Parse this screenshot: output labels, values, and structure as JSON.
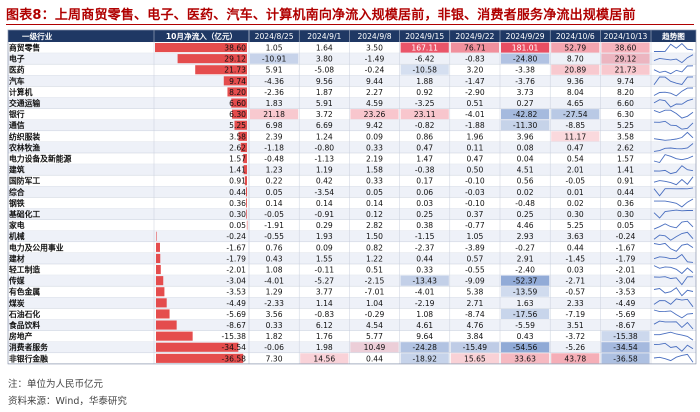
{
  "title": "图表8：上周商贸零售、电子、医药、汽车、计算机南向净流入规模居前，非银、消费者服务净流出规模居前",
  "header": {
    "industry": "一级行业",
    "latest": "10月净流入（亿元）",
    "trend": "趋势图"
  },
  "footnote": {
    "unit": "注：单位为人民币亿元",
    "source": "资料来源：Wind，华泰研究"
  },
  "colors": {
    "title": "#b00000",
    "header_bg": "#1f3864",
    "bar_red": "#e23a3a",
    "pos_cell": "#e8445a",
    "neg_cell": "#2f5fb3",
    "sparkline": "#4a6fc0",
    "band": "#eef1f8"
  },
  "chart_data": {
    "type": "table",
    "columns": [
      "2024/8/25",
      "2024/9/1",
      "2024/9/8",
      "2024/9/15",
      "2024/9/22",
      "2024/9/29",
      "2024/10/6",
      "2024/10/13"
    ],
    "rows": [
      {
        "industry": "商贸零售",
        "latest": "38.60",
        "values": [
          "1.05",
          "1.64",
          "3.50",
          "167.11",
          "76.71",
          "181.01",
          "52.79",
          "38.60"
        ]
      },
      {
        "industry": "电子",
        "latest": "29.12",
        "values": [
          "-10.91",
          "3.80",
          "-1.49",
          "-6.42",
          "-0.83",
          "-24.80",
          "8.70",
          "29.12"
        ]
      },
      {
        "industry": "医药",
        "latest": "21.73",
        "values": [
          "5.91",
          "-5.08",
          "-0.24",
          "-10.58",
          "3.20",
          "-3.38",
          "20.89",
          "21.73"
        ]
      },
      {
        "industry": "汽车",
        "latest": "9.74",
        "values": [
          "-4.36",
          "9.56",
          "9.44",
          "1.88",
          "-1.47",
          "-3.76",
          "9.36",
          "9.74"
        ]
      },
      {
        "industry": "计算机",
        "latest": "8.20",
        "values": [
          "-2.36",
          "1.87",
          "2.27",
          "0.92",
          "-2.90",
          "3.73",
          "8.04",
          "8.20"
        ]
      },
      {
        "industry": "交通运输",
        "latest": "6.60",
        "values": [
          "1.83",
          "5.91",
          "4.59",
          "-3.25",
          "0.51",
          "0.27",
          "4.65",
          "6.60"
        ]
      },
      {
        "industry": "银行",
        "latest": "6.30",
        "values": [
          "21.18",
          "3.72",
          "23.26",
          "23.11",
          "-4.01",
          "-42.82",
          "-27.54",
          "6.30"
        ]
      },
      {
        "industry": "通信",
        "latest": "5.25",
        "values": [
          "6.98",
          "6.69",
          "9.42",
          "-0.82",
          "-1.88",
          "-11.30",
          "-8.85",
          "5.25"
        ]
      },
      {
        "industry": "纺织服装",
        "latest": "3.58",
        "values": [
          "2.39",
          "1.24",
          "0.09",
          "0.86",
          "1.96",
          "3.96",
          "11.17",
          "3.58"
        ]
      },
      {
        "industry": "农林牧渔",
        "latest": "2.62",
        "values": [
          "-1.18",
          "-0.80",
          "0.33",
          "0.47",
          "0.11",
          "0.08",
          "0.47",
          "2.62"
        ]
      },
      {
        "industry": "电力设备及新能源",
        "latest": "1.57",
        "values": [
          "-0.48",
          "-1.13",
          "2.19",
          "1.47",
          "0.47",
          "0.04",
          "0.54",
          "1.57"
        ]
      },
      {
        "industry": "建筑",
        "latest": "1.41",
        "values": [
          "1.23",
          "1.19",
          "1.58",
          "-0.38",
          "0.50",
          "4.51",
          "2.01",
          "1.41"
        ]
      },
      {
        "industry": "国防军工",
        "latest": "0.91",
        "values": [
          "0.22",
          "0.42",
          "0.33",
          "0.17",
          "-0.10",
          "0.56",
          "-0.05",
          "0.91"
        ]
      },
      {
        "industry": "综合",
        "latest": "0.44",
        "values": [
          "0.05",
          "-3.54",
          "0.05",
          "0.06",
          "-0.03",
          "0.02",
          "0.01",
          "0.44"
        ]
      },
      {
        "industry": "钢铁",
        "latest": "0.36",
        "values": [
          "0.14",
          "0.14",
          "0.14",
          "0.03",
          "-0.10",
          "-0.48",
          "0.02",
          "0.36"
        ]
      },
      {
        "industry": "基础化工",
        "latest": "0.30",
        "values": [
          "-0.05",
          "-0.91",
          "0.12",
          "0.25",
          "0.37",
          "0.25",
          "0.30",
          "0.30"
        ]
      },
      {
        "industry": "家电",
        "latest": "0.05",
        "values": [
          "-1.91",
          "0.29",
          "2.82",
          "0.38",
          "-0.77",
          "4.46",
          "5.25",
          "0.05"
        ]
      },
      {
        "industry": "机械",
        "latest": "-0.24",
        "values": [
          "-0.55",
          "1.93",
          "1.50",
          "-1.15",
          "1.05",
          "2.93",
          "3.63",
          "-0.24"
        ]
      },
      {
        "industry": "电力及公用事业",
        "latest": "-1.67",
        "values": [
          "0.76",
          "0.09",
          "0.82",
          "-2.37",
          "-3.89",
          "-0.27",
          "0.44",
          "-1.67"
        ]
      },
      {
        "industry": "建材",
        "latest": "-1.79",
        "values": [
          "0.43",
          "1.55",
          "1.22",
          "0.44",
          "0.57",
          "2.91",
          "-1.45",
          "-1.79"
        ]
      },
      {
        "industry": "轻工制造",
        "latest": "-2.01",
        "values": [
          "1.08",
          "-0.11",
          "0.51",
          "0.33",
          "-0.55",
          "-2.40",
          "0.03",
          "-2.01"
        ]
      },
      {
        "industry": "传媒",
        "latest": "-3.04",
        "values": [
          "-4.01",
          "-5.27",
          "-2.15",
          "-13.43",
          "-9.09",
          "-52.37",
          "-2.71",
          "-3.04"
        ]
      },
      {
        "industry": "有色金属",
        "latest": "-3.53",
        "values": [
          "1.29",
          "3.77",
          "-7.01",
          "-4.01",
          "5.38",
          "-13.59",
          "-0.57",
          "-3.53"
        ]
      },
      {
        "industry": "煤炭",
        "latest": "-4.49",
        "values": [
          "-2.33",
          "1.14",
          "1.04",
          "-2.19",
          "2.71",
          "1.63",
          "2.33",
          "-4.49"
        ]
      },
      {
        "industry": "石油石化",
        "latest": "-5.69",
        "values": [
          "3.56",
          "-0.83",
          "-0.29",
          "1.08",
          "-8.74",
          "-17.56",
          "-7.19",
          "-5.69"
        ]
      },
      {
        "industry": "食品饮料",
        "latest": "-8.67",
        "values": [
          "0.33",
          "6.12",
          "4.54",
          "4.61",
          "4.76",
          "-5.59",
          "3.51",
          "-8.67"
        ]
      },
      {
        "industry": "房地产",
        "latest": "-15.38",
        "values": [
          "1.82",
          "1.76",
          "5.77",
          "9.64",
          "3.84",
          "0.43",
          "-3.72",
          "-15.38"
        ]
      },
      {
        "industry": "消费者服务",
        "latest": "-34.54",
        "values": [
          "-0.06",
          "1.98",
          "10.49",
          "-24.28",
          "-15.49",
          "-54.56",
          "-5.26",
          "-34.54"
        ]
      },
      {
        "industry": "非银行金融",
        "latest": "-36.58",
        "values": [
          "7.30",
          "14.56",
          "0.44",
          "-18.92",
          "15.65",
          "33.63",
          "43.78",
          "-36.58"
        ]
      }
    ]
  }
}
